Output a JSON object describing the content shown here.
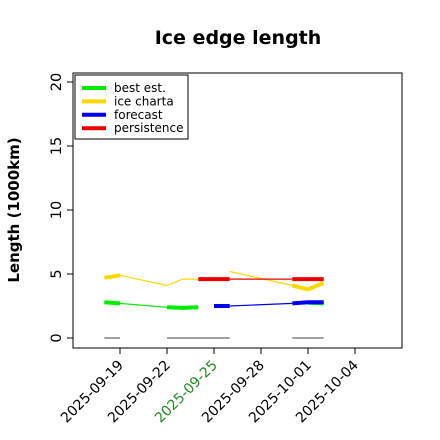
{
  "chart_data": {
    "type": "line",
    "title": "Ice edge length",
    "ylabel": "Length (1000km)",
    "xlabel": "",
    "ylim": [
      0,
      20
    ],
    "yticks": [
      "0",
      "5",
      "10",
      "15",
      "20"
    ],
    "xlim": [
      "2025-09-16",
      "2025-10-07"
    ],
    "xticks": [
      "2025-09-19",
      "2025-09-22",
      "2025-09-25",
      "2025-09-28",
      "2025-10-01",
      "2025-10-04"
    ],
    "highlight_xtick": "2025-09-25",
    "highlight_color": "#228b22",
    "grid": false,
    "legend_position": "top-left",
    "series": [
      {
        "name": "best est.",
        "color": "#00ee00",
        "segments": [
          {
            "style": "thick",
            "points": [
              [
                "2025-09-18",
                2.8
              ],
              [
                "2025-09-19",
                2.7
              ]
            ]
          },
          {
            "style": "thin",
            "points": [
              [
                "2025-09-19",
                2.7
              ],
              [
                "2025-09-22",
                2.4
              ]
            ]
          },
          {
            "style": "thick",
            "points": [
              [
                "2025-09-22",
                2.4
              ],
              [
                "2025-09-23",
                2.35
              ],
              [
                "2025-09-24",
                2.4
              ]
            ]
          },
          {
            "style": "thick",
            "points": [
              [
                "2025-10-01",
                2.75
              ],
              [
                "2025-10-02",
                2.7
              ]
            ]
          }
        ]
      },
      {
        "name": "ice charta",
        "color": "#ffd700",
        "segments": [
          {
            "style": "thick",
            "points": [
              [
                "2025-09-18",
                4.7
              ],
              [
                "2025-09-19",
                4.9
              ]
            ]
          },
          {
            "style": "thin",
            "points": [
              [
                "2025-09-19",
                4.9
              ],
              [
                "2025-09-22",
                4.1
              ],
              [
                "2025-09-23",
                4.6
              ],
              [
                "2025-09-24",
                4.6
              ]
            ]
          },
          {
            "style": "thin",
            "points": [
              [
                "2025-09-26",
                5.2
              ],
              [
                "2025-09-30",
                4.1
              ],
              [
                "2025-10-01",
                3.8
              ],
              [
                "2025-10-02",
                4.3
              ]
            ]
          },
          {
            "style": "thick",
            "points": [
              [
                "2025-09-30",
                4.1
              ],
              [
                "2025-10-01",
                3.8
              ],
              [
                "2025-10-02",
                4.3
              ]
            ]
          }
        ]
      },
      {
        "name": "forecast",
        "color": "#0000ee",
        "segments": [
          {
            "style": "thick",
            "points": [
              [
                "2025-09-25",
                2.5
              ],
              [
                "2025-09-26",
                2.5
              ]
            ]
          },
          {
            "style": "thin",
            "points": [
              [
                "2025-09-26",
                2.5
              ],
              [
                "2025-09-30",
                2.7
              ]
            ]
          },
          {
            "style": "thick",
            "points": [
              [
                "2025-09-30",
                2.7
              ],
              [
                "2025-10-01",
                2.8
              ],
              [
                "2025-10-02",
                2.8
              ]
            ]
          }
        ]
      },
      {
        "name": "persistence",
        "color": "#ee0000",
        "segments": [
          {
            "style": "thick",
            "points": [
              [
                "2025-09-24",
                4.6
              ],
              [
                "2025-09-26",
                4.6
              ]
            ]
          },
          {
            "style": "thin",
            "points": [
              [
                "2025-09-26",
                4.6
              ],
              [
                "2025-09-30",
                4.6
              ]
            ]
          },
          {
            "style": "thick",
            "points": [
              [
                "2025-09-30",
                4.6
              ],
              [
                "2025-10-02",
                4.6
              ]
            ]
          }
        ]
      }
    ],
    "baseline_marks": {
      "color": "#808080",
      "y": 0,
      "ranges": [
        [
          "2025-09-18",
          "2025-09-19"
        ],
        [
          "2025-09-22",
          "2025-09-26"
        ],
        [
          "2025-09-30",
          "2025-10-02"
        ]
      ]
    }
  }
}
